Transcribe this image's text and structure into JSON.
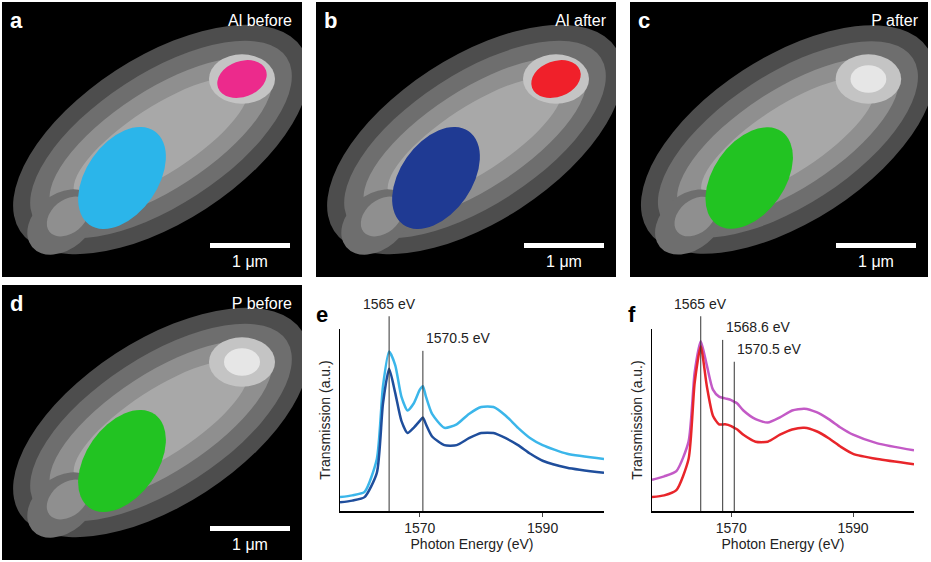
{
  "maps": [
    {
      "label": "a",
      "title": "Al before",
      "scale_bar": "1 μm",
      "regions": [
        "#2bb5ea",
        "#ec2a8c"
      ]
    },
    {
      "label": "b",
      "title": "Al after",
      "scale_bar": "1 μm",
      "regions": [
        "#1f3a93",
        "#f0202a"
      ]
    },
    {
      "label": "c",
      "title": "P after",
      "scale_bar": "1 μm",
      "regions": [
        "#22c322"
      ]
    },
    {
      "label": "d",
      "title": "P before",
      "scale_bar": "1 μm",
      "regions": [
        "#22c322"
      ]
    }
  ],
  "chart_data": [
    {
      "label": "e",
      "type": "line",
      "xlabel": "Photon Energy (eV)",
      "ylabel": "Transmission (a.u.)",
      "x": [
        1557,
        1559,
        1561,
        1563,
        1564,
        1565,
        1566,
        1567,
        1568,
        1569,
        1570,
        1570.5,
        1571,
        1572,
        1574,
        1576,
        1578,
        1580,
        1582,
        1584,
        1586,
        1588,
        1590,
        1594,
        1600
      ],
      "series": [
        {
          "color": "#3bb6ea",
          "values": [
            0.08,
            0.09,
            0.11,
            0.3,
            0.72,
            0.92,
            0.84,
            0.66,
            0.58,
            0.62,
            0.7,
            0.72,
            0.66,
            0.56,
            0.48,
            0.5,
            0.56,
            0.6,
            0.6,
            0.55,
            0.48,
            0.42,
            0.38,
            0.33,
            0.3
          ]
        },
        {
          "color": "#1f4e9c",
          "values": [
            0.05,
            0.06,
            0.08,
            0.22,
            0.62,
            0.82,
            0.68,
            0.52,
            0.45,
            0.48,
            0.52,
            0.54,
            0.5,
            0.43,
            0.38,
            0.38,
            0.42,
            0.45,
            0.45,
            0.42,
            0.38,
            0.33,
            0.29,
            0.25,
            0.22
          ]
        }
      ],
      "xlim": [
        1557,
        1600
      ],
      "ylim": [
        0,
        1.05
      ],
      "xticks": [
        1570,
        1590
      ],
      "tick_labels": "x",
      "annotations": [
        {
          "x": 1565,
          "text": "1565 eV"
        },
        {
          "x": 1570.5,
          "text": "1570.5 eV"
        }
      ]
    },
    {
      "label": "f",
      "type": "line",
      "xlabel": "Photon Energy (eV)",
      "ylabel": "Transmission (a.u.)",
      "x": [
        1557,
        1559,
        1561,
        1563,
        1564,
        1565,
        1566,
        1567,
        1568,
        1569,
        1570,
        1570.5,
        1571,
        1572,
        1574,
        1576,
        1578,
        1580,
        1582,
        1584,
        1586,
        1588,
        1590,
        1594,
        1600
      ],
      "series": [
        {
          "color": "#c35ac6",
          "values": [
            0.18,
            0.2,
            0.23,
            0.4,
            0.8,
            0.98,
            0.84,
            0.7,
            0.66,
            0.65,
            0.64,
            0.63,
            0.62,
            0.58,
            0.53,
            0.51,
            0.54,
            0.58,
            0.59,
            0.57,
            0.53,
            0.48,
            0.44,
            0.39,
            0.35
          ]
        },
        {
          "color": "#e8252a",
          "values": [
            0.08,
            0.09,
            0.12,
            0.3,
            0.74,
            0.95,
            0.72,
            0.55,
            0.5,
            0.5,
            0.49,
            0.48,
            0.47,
            0.44,
            0.4,
            0.4,
            0.44,
            0.47,
            0.48,
            0.46,
            0.42,
            0.37,
            0.33,
            0.3,
            0.27
          ]
        }
      ],
      "xlim": [
        1557,
        1600
      ],
      "ylim": [
        0,
        1.05
      ],
      "xticks": [
        1570,
        1590
      ],
      "tick_labels": "x",
      "annotations": [
        {
          "x": 1565,
          "text": "1565 eV"
        },
        {
          "x": 1568.6,
          "text": "1568.6 eV"
        },
        {
          "x": 1570.5,
          "text": "1570.5 eV"
        }
      ]
    }
  ]
}
